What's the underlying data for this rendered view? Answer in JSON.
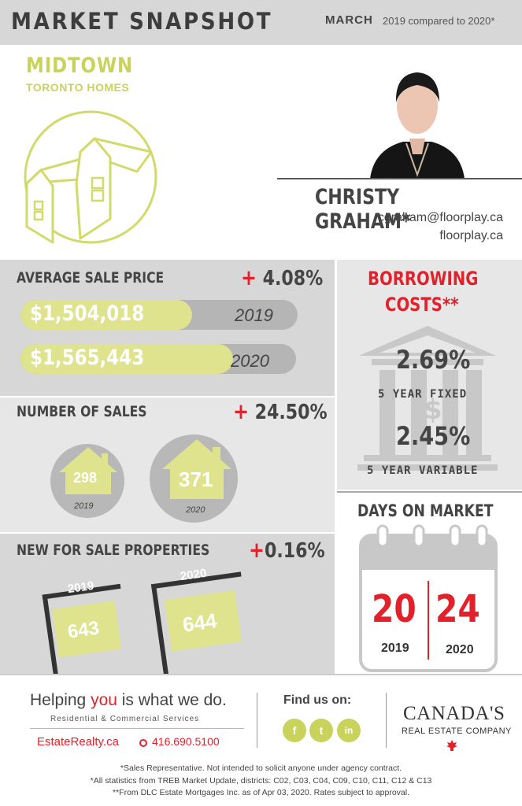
{
  "header": {
    "title": "MARKET SNAPSHOT",
    "month": "MARCH",
    "comparison": "2019 compared to 2020*"
  },
  "location": {
    "name": "MIDTOWN",
    "subtitle": "TORONTO HOMES"
  },
  "agent": {
    "name": "CHRISTY GRAHAM*",
    "email": "cgraham@floorplay.ca",
    "website": "floorplay.ca"
  },
  "average_sale_price": {
    "title": "AVERAGE SALE PRICE",
    "change": "4.08%",
    "bars": [
      {
        "value": "$1,504,018",
        "year": "2019",
        "fill": 0.62
      },
      {
        "value": "$1,565,443",
        "year": "2020",
        "fill": 0.77
      }
    ]
  },
  "number_of_sales": {
    "title": "NUMBER OF SALES",
    "change": "24.50%",
    "items": [
      {
        "value": "298",
        "year": "2019"
      },
      {
        "value": "371",
        "year": "2020"
      }
    ]
  },
  "new_for_sale": {
    "title": "NEW FOR SALE PROPERTIES",
    "change": "0.16%",
    "items": [
      {
        "value": "643",
        "year": "2019"
      },
      {
        "value": "644",
        "year": "2020"
      }
    ]
  },
  "borrowing_costs": {
    "title_line1": "BORROWING",
    "title_line2": "COSTS**",
    "fixed_rate": "2.69%",
    "fixed_label": "5 YEAR FIXED",
    "variable_rate": "2.45%",
    "variable_label": "5 YEAR VARIABLE"
  },
  "days_on_market": {
    "title": "DAYS ON MARKET",
    "values": [
      {
        "value": "20",
        "year": "2019"
      },
      {
        "value": "24",
        "year": "2020"
      }
    ]
  },
  "footer": {
    "tagline_pre": "Helping ",
    "tagline_hl": "you",
    "tagline_post": " is what we do.",
    "services": "Residential & Commercial Services",
    "site": "EstateRealty.ca",
    "phone": "416.690.5100",
    "find_us": "Find us on:",
    "social": [
      "f",
      "t",
      "in"
    ],
    "brand_line1": "CANADA'S",
    "brand_line2": "REAL ESTATE COMPANY"
  },
  "fine_print": [
    "*Sales Representative. Not intended to solicit anyone under agency contract.",
    "*All statistics from TREB Market Update, districts: C02, C03, C04, C09, C10, C11, C12 & C13",
    "**From DLC Estate Mortgages Inc. as of Apr 03, 2020. Rates subject to approval."
  ],
  "colors": {
    "accent_green": "#c9d25a",
    "accent_red": "#e2212b",
    "panel_gray": "#d7d7d7"
  }
}
